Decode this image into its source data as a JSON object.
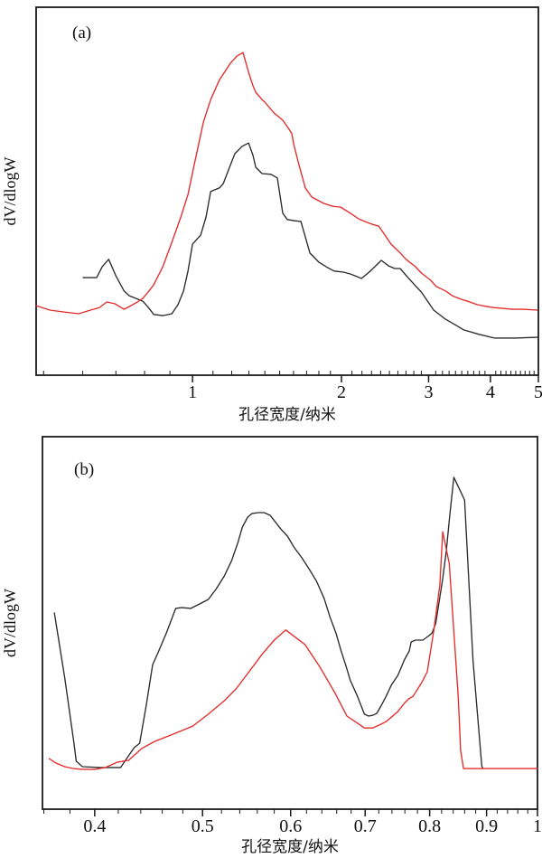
{
  "page": {
    "background": "#ffffff"
  },
  "chart_data": [
    {
      "id": "a",
      "type": "line",
      "panel_label": "(a)",
      "xlabel": "孔径宽度/纳米",
      "ylabel": "dV/dlogW",
      "xscale": "log",
      "xlim": [
        0.483,
        5.0
      ],
      "x_major_ticks": [
        1,
        2,
        3,
        4,
        5
      ],
      "x_major_tick_labels": [
        "1",
        "2",
        "3",
        "4",
        "5"
      ],
      "x_minor_ticks": [
        0.5,
        0.6,
        0.7,
        0.8,
        0.9,
        1.1,
        1.2,
        1.3,
        1.4,
        1.5,
        1.6,
        1.7,
        1.8,
        1.9,
        2.1,
        2.2,
        2.3,
        2.4,
        2.5,
        2.6,
        2.7,
        2.8,
        2.9,
        3.1,
        3.2,
        3.3,
        3.4,
        3.5,
        3.6,
        3.7,
        3.8,
        3.9,
        4.1,
        4.2,
        4.3,
        4.4,
        4.5,
        4.6,
        4.7,
        4.8,
        4.9
      ],
      "y_axis_note": "no y tick labels; values normalized 0-1 of plot height",
      "grid": "off",
      "legend": "none",
      "series": [
        {
          "name": "black-curve",
          "color": "#2b2b2b",
          "points": [
            [
              0.601,
              0.265
            ],
            [
              0.64,
              0.265
            ],
            [
              0.657,
              0.295
            ],
            [
              0.677,
              0.315
            ],
            [
              0.7,
              0.27
            ],
            [
              0.727,
              0.229
            ],
            [
              0.745,
              0.216
            ],
            [
              0.767,
              0.209
            ],
            [
              0.794,
              0.201
            ],
            [
              0.814,
              0.184
            ],
            [
              0.835,
              0.165
            ],
            [
              0.871,
              0.162
            ],
            [
              0.908,
              0.167
            ],
            [
              0.935,
              0.192
            ],
            [
              0.959,
              0.229
            ],
            [
              0.979,
              0.283
            ],
            [
              1.0,
              0.356
            ],
            [
              1.039,
              0.381
            ],
            [
              1.065,
              0.43
            ],
            [
              1.088,
              0.499
            ],
            [
              1.134,
              0.509
            ],
            [
              1.154,
              0.521
            ],
            [
              1.188,
              0.565
            ],
            [
              1.218,
              0.602
            ],
            [
              1.26,
              0.622
            ],
            [
              1.298,
              0.631
            ],
            [
              1.325,
              0.597
            ],
            [
              1.342,
              0.565
            ],
            [
              1.382,
              0.548
            ],
            [
              1.441,
              0.546
            ],
            [
              1.484,
              0.536
            ],
            [
              1.522,
              0.44
            ],
            [
              1.555,
              0.423
            ],
            [
              1.602,
              0.42
            ],
            [
              1.656,
              0.418
            ],
            [
              1.727,
              0.332
            ],
            [
              1.801,
              0.307
            ],
            [
              1.878,
              0.292
            ],
            [
              1.934,
              0.283
            ],
            [
              2.018,
              0.28
            ],
            [
              2.087,
              0.275
            ],
            [
              2.149,
              0.268
            ],
            [
              2.195,
              0.263
            ],
            [
              2.288,
              0.283
            ],
            [
              2.357,
              0.3
            ],
            [
              2.407,
              0.312
            ],
            [
              2.49,
              0.297
            ],
            [
              2.563,
              0.29
            ],
            [
              2.628,
              0.29
            ],
            [
              2.706,
              0.27
            ],
            [
              2.786,
              0.251
            ],
            [
              2.9,
              0.226
            ],
            [
              3.072,
              0.177
            ],
            [
              3.246,
              0.152
            ],
            [
              3.415,
              0.135
            ],
            [
              3.533,
              0.123
            ],
            [
              3.793,
              0.111
            ],
            [
              4.072,
              0.101
            ],
            [
              4.48,
              0.101
            ],
            [
              4.97,
              0.103
            ]
          ]
        },
        {
          "name": "red-curve",
          "color": "#e32b2b",
          "points": [
            [
              0.483,
              0.189
            ],
            [
              0.515,
              0.177
            ],
            [
              0.548,
              0.172
            ],
            [
              0.589,
              0.167
            ],
            [
              0.622,
              0.177
            ],
            [
              0.649,
              0.184
            ],
            [
              0.671,
              0.199
            ],
            [
              0.697,
              0.194
            ],
            [
              0.727,
              0.179
            ],
            [
              0.751,
              0.189
            ],
            [
              0.774,
              0.199
            ],
            [
              0.794,
              0.209
            ],
            [
              0.817,
              0.229
            ],
            [
              0.835,
              0.246
            ],
            [
              0.871,
              0.295
            ],
            [
              0.908,
              0.361
            ],
            [
              0.947,
              0.43
            ],
            [
              0.979,
              0.491
            ],
            [
              1.008,
              0.572
            ],
            [
              1.052,
              0.688
            ],
            [
              1.088,
              0.749
            ],
            [
              1.134,
              0.803
            ],
            [
              1.193,
              0.848
            ],
            [
              1.229,
              0.867
            ],
            [
              1.265,
              0.877
            ],
            [
              1.298,
              0.823
            ],
            [
              1.325,
              0.786
            ],
            [
              1.342,
              0.769
            ],
            [
              1.382,
              0.749
            ],
            [
              1.4,
              0.742
            ],
            [
              1.46,
              0.713
            ],
            [
              1.522,
              0.693
            ],
            [
              1.568,
              0.668
            ],
            [
              1.588,
              0.656
            ],
            [
              1.602,
              0.627
            ],
            [
              1.637,
              0.577
            ],
            [
              1.69,
              0.509
            ],
            [
              1.742,
              0.484
            ],
            [
              1.84,
              0.467
            ],
            [
              1.92,
              0.459
            ],
            [
              1.99,
              0.457
            ],
            [
              2.087,
              0.44
            ],
            [
              2.164,
              0.425
            ],
            [
              2.256,
              0.415
            ],
            [
              2.31,
              0.41
            ],
            [
              2.38,
              0.405
            ],
            [
              2.52,
              0.356
            ],
            [
              2.63,
              0.332
            ],
            [
              2.706,
              0.314
            ],
            [
              2.82,
              0.295
            ],
            [
              2.9,
              0.278
            ],
            [
              3.03,
              0.258
            ],
            [
              3.11,
              0.241
            ],
            [
              3.246,
              0.229
            ],
            [
              3.35,
              0.216
            ],
            [
              3.5,
              0.206
            ],
            [
              3.6,
              0.201
            ],
            [
              3.76,
              0.192
            ],
            [
              3.85,
              0.189
            ],
            [
              4.04,
              0.184
            ],
            [
              4.21,
              0.182
            ],
            [
              4.43,
              0.179
            ],
            [
              4.67,
              0.179
            ],
            [
              4.97,
              0.177
            ]
          ]
        }
      ]
    },
    {
      "id": "b",
      "type": "line",
      "panel_label": "(b)",
      "xlabel": "孔径宽度/纳米",
      "ylabel": "dV/dlogW",
      "xscale": "log",
      "xlim": [
        0.359,
        1.0
      ],
      "x_major_ticks": [
        0.4,
        0.5,
        0.6,
        0.7,
        0.8,
        0.9,
        1
      ],
      "x_major_tick_labels": [
        "0.4",
        "0.5",
        "0.6",
        "0.7",
        "0.8",
        "0.9",
        "1"
      ],
      "x_minor_ticks": [
        0.36,
        0.38,
        0.42,
        0.44,
        0.46,
        0.48,
        0.52,
        0.54,
        0.56,
        0.58,
        0.62,
        0.64,
        0.66,
        0.68,
        0.72,
        0.74,
        0.76,
        0.78,
        0.82,
        0.84,
        0.86,
        0.88,
        0.92,
        0.94,
        0.96,
        0.98
      ],
      "y_axis_note": "no y tick labels; values normalized 0-1 of plot height",
      "grid": "off",
      "legend": "none",
      "series": [
        {
          "name": "black-curve",
          "color": "#2b2b2b",
          "points": [
            [
              0.368,
              0.527
            ],
            [
              0.376,
              0.352
            ],
            [
              0.383,
              0.182
            ],
            [
              0.385,
              0.129
            ],
            [
              0.39,
              0.114
            ],
            [
              0.405,
              0.112
            ],
            [
              0.422,
              0.112
            ],
            [
              0.434,
              0.165
            ],
            [
              0.439,
              0.177
            ],
            [
              0.445,
              0.279
            ],
            [
              0.451,
              0.388
            ],
            [
              0.456,
              0.42
            ],
            [
              0.464,
              0.473
            ],
            [
              0.473,
              0.539
            ],
            [
              0.479,
              0.541
            ],
            [
              0.488,
              0.539
            ],
            [
              0.497,
              0.551
            ],
            [
              0.506,
              0.563
            ],
            [
              0.514,
              0.59
            ],
            [
              0.523,
              0.626
            ],
            [
              0.531,
              0.667
            ],
            [
              0.538,
              0.716
            ],
            [
              0.543,
              0.757
            ],
            [
              0.549,
              0.784
            ],
            [
              0.554,
              0.794
            ],
            [
              0.561,
              0.796
            ],
            [
              0.568,
              0.796
            ],
            [
              0.575,
              0.789
            ],
            [
              0.582,
              0.769
            ],
            [
              0.588,
              0.752
            ],
            [
              0.596,
              0.733
            ],
            [
              0.604,
              0.704
            ],
            [
              0.614,
              0.675
            ],
            [
              0.624,
              0.643
            ],
            [
              0.633,
              0.612
            ],
            [
              0.643,
              0.566
            ],
            [
              0.651,
              0.515
            ],
            [
              0.659,
              0.473
            ],
            [
              0.666,
              0.425
            ],
            [
              0.673,
              0.383
            ],
            [
              0.679,
              0.345
            ],
            [
              0.685,
              0.32
            ],
            [
              0.689,
              0.303
            ],
            [
              0.694,
              0.279
            ],
            [
              0.699,
              0.255
            ],
            [
              0.705,
              0.25
            ],
            [
              0.711,
              0.252
            ],
            [
              0.717,
              0.257
            ],
            [
              0.724,
              0.279
            ],
            [
              0.731,
              0.303
            ],
            [
              0.739,
              0.333
            ],
            [
              0.749,
              0.359
            ],
            [
              0.759,
              0.4
            ],
            [
              0.767,
              0.425
            ],
            [
              0.77,
              0.449
            ],
            [
              0.777,
              0.454
            ],
            [
              0.789,
              0.454
            ],
            [
              0.799,
              0.466
            ],
            [
              0.804,
              0.473
            ],
            [
              0.81,
              0.498
            ],
            [
              0.816,
              0.558
            ],
            [
              0.822,
              0.619
            ],
            [
              0.828,
              0.692
            ],
            [
              0.834,
              0.789
            ],
            [
              0.841,
              0.891
            ],
            [
              0.85,
              0.862
            ],
            [
              0.86,
              0.83
            ],
            [
              0.875,
              0.4
            ],
            [
              0.891,
              0.117
            ],
            [
              0.893,
              0.109
            ]
          ]
        },
        {
          "name": "red-curve",
          "color": "#e32b2b",
          "points": [
            [
              0.364,
              0.136
            ],
            [
              0.369,
              0.124
            ],
            [
              0.376,
              0.114
            ],
            [
              0.383,
              0.109
            ],
            [
              0.39,
              0.107
            ],
            [
              0.4,
              0.107
            ],
            [
              0.409,
              0.112
            ],
            [
              0.419,
              0.126
            ],
            [
              0.429,
              0.131
            ],
            [
              0.441,
              0.163
            ],
            [
              0.453,
              0.182
            ],
            [
              0.47,
              0.201
            ],
            [
              0.49,
              0.223
            ],
            [
              0.506,
              0.255
            ],
            [
              0.523,
              0.291
            ],
            [
              0.536,
              0.323
            ],
            [
              0.549,
              0.364
            ],
            [
              0.566,
              0.417
            ],
            [
              0.58,
              0.454
            ],
            [
              0.594,
              0.481
            ],
            [
              0.618,
              0.442
            ],
            [
              0.637,
              0.383
            ],
            [
              0.658,
              0.311
            ],
            [
              0.674,
              0.25
            ],
            [
              0.689,
              0.231
            ],
            [
              0.699,
              0.218
            ],
            [
              0.711,
              0.218
            ],
            [
              0.721,
              0.226
            ],
            [
              0.731,
              0.235
            ],
            [
              0.749,
              0.262
            ],
            [
              0.759,
              0.284
            ],
            [
              0.766,
              0.296
            ],
            [
              0.773,
              0.303
            ],
            [
              0.787,
              0.34
            ],
            [
              0.796,
              0.369
            ],
            [
              0.807,
              0.481
            ],
            [
              0.817,
              0.602
            ],
            [
              0.822,
              0.745
            ],
            [
              0.833,
              0.66
            ],
            [
              0.842,
              0.456
            ],
            [
              0.849,
              0.296
            ],
            [
              0.853,
              0.158
            ],
            [
              0.858,
              0.109
            ],
            [
              0.902,
              0.109
            ],
            [
              0.954,
              0.109
            ],
            [
              1.0,
              0.109
            ]
          ]
        }
      ]
    }
  ]
}
